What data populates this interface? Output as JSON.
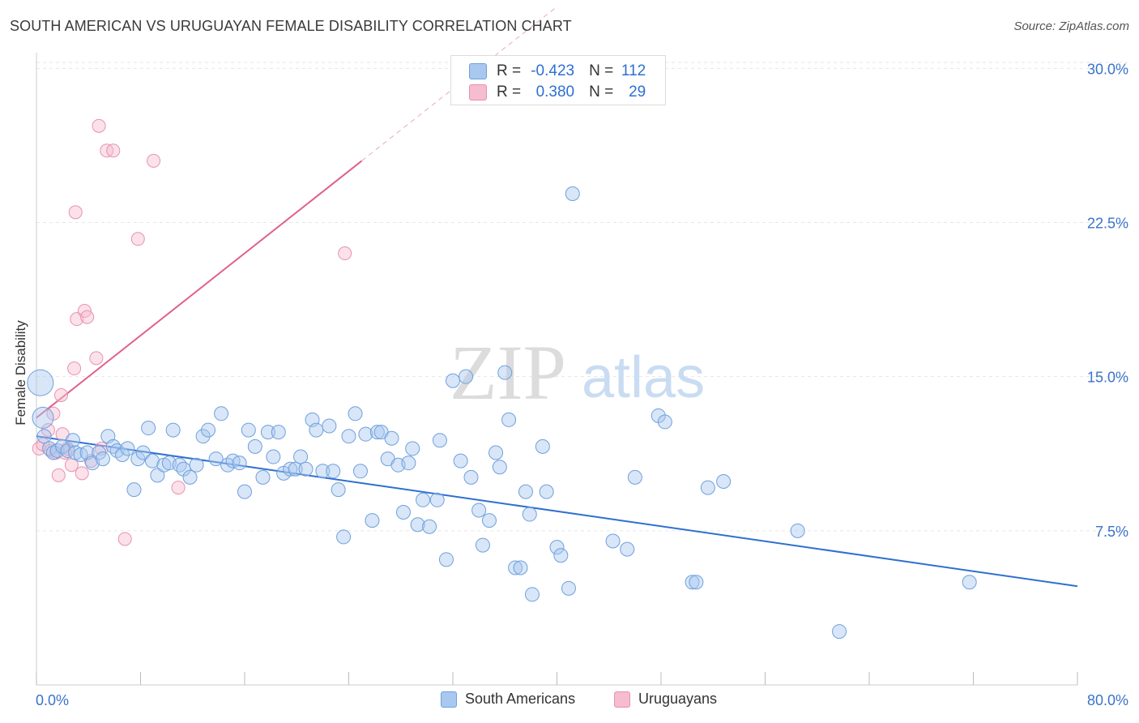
{
  "header": {
    "title": "SOUTH AMERICAN VS URUGUAYAN FEMALE DISABILITY CORRELATION CHART",
    "source": "Source: ZipAtlas.com"
  },
  "watermark": {
    "zip": "ZIP",
    "atlas": "atlas"
  },
  "inset_legend": {
    "rows": [
      {
        "r_label": "R =",
        "r_value": "-0.423",
        "n_label": "N =",
        "n_value": "112"
      },
      {
        "r_label": "R =",
        "r_value": "0.380",
        "n_label": "N =",
        "n_value": "29"
      }
    ]
  },
  "bottom_legend": {
    "south_americans": "South Americans",
    "uruguayans": "Uruguayans"
  },
  "colors": {
    "blue_fill": "#a8c8f0",
    "blue_stroke": "#6fa0dc",
    "blue_line": "#2e6fd1",
    "pink_fill": "#f6bcd0",
    "pink_stroke": "#e891b0",
    "pink_line": "#e0608a",
    "axis_text": "#3a73c8",
    "grid": "#e6e6e6"
  },
  "chart_data": {
    "type": "scatter",
    "title": "SOUTH AMERICAN VS URUGUAYAN FEMALE DISABILITY CORRELATION CHART",
    "xlabel": "",
    "ylabel": "Female Disability",
    "xlim": [
      0,
      80
    ],
    "ylim": [
      0,
      31.5
    ],
    "x_tick_labels": [
      "0.0%",
      "80.0%"
    ],
    "y_ticks": [
      7.5,
      15.0,
      22.5,
      30.0
    ],
    "y_tick_labels": [
      "7.5%",
      "15.0%",
      "22.5%",
      "30.0%"
    ],
    "grid": true,
    "series": [
      {
        "name": "South Americans",
        "R": -0.423,
        "N": 112,
        "trend": {
          "x": [
            0,
            80
          ],
          "y": [
            12.1,
            4.8
          ]
        },
        "points": [
          [
            0.3,
            14.7
          ],
          [
            0.5,
            13.0
          ],
          [
            0.6,
            12.1
          ],
          [
            1.0,
            11.5
          ],
          [
            1.3,
            11.3
          ],
          [
            1.6,
            11.4
          ],
          [
            2.0,
            11.6
          ],
          [
            2.4,
            11.4
          ],
          [
            2.8,
            11.9
          ],
          [
            3.0,
            11.3
          ],
          [
            3.4,
            11.2
          ],
          [
            3.9,
            11.3
          ],
          [
            4.3,
            10.8
          ],
          [
            4.8,
            11.3
          ],
          [
            5.1,
            11.0
          ],
          [
            5.5,
            12.1
          ],
          [
            5.9,
            11.6
          ],
          [
            6.2,
            11.4
          ],
          [
            6.6,
            11.2
          ],
          [
            7.0,
            11.5
          ],
          [
            7.5,
            9.5
          ],
          [
            7.8,
            11.0
          ],
          [
            8.2,
            11.3
          ],
          [
            8.6,
            12.5
          ],
          [
            8.9,
            10.9
          ],
          [
            9.3,
            10.2
          ],
          [
            9.8,
            10.7
          ],
          [
            10.2,
            10.8
          ],
          [
            10.5,
            12.4
          ],
          [
            11.0,
            10.7
          ],
          [
            11.3,
            10.5
          ],
          [
            11.8,
            10.1
          ],
          [
            12.3,
            10.7
          ],
          [
            12.8,
            12.1
          ],
          [
            13.2,
            12.4
          ],
          [
            13.8,
            11.0
          ],
          [
            14.2,
            13.2
          ],
          [
            14.7,
            10.7
          ],
          [
            15.1,
            10.9
          ],
          [
            15.6,
            10.8
          ],
          [
            16.0,
            9.4
          ],
          [
            16.3,
            12.4
          ],
          [
            16.8,
            11.6
          ],
          [
            17.4,
            10.1
          ],
          [
            17.8,
            12.3
          ],
          [
            18.2,
            11.1
          ],
          [
            18.6,
            12.3
          ],
          [
            19.0,
            10.3
          ],
          [
            19.5,
            10.5
          ],
          [
            19.9,
            10.5
          ],
          [
            20.3,
            11.1
          ],
          [
            20.7,
            10.5
          ],
          [
            21.2,
            12.9
          ],
          [
            21.5,
            12.4
          ],
          [
            22.0,
            10.4
          ],
          [
            22.5,
            12.6
          ],
          [
            22.8,
            10.4
          ],
          [
            23.2,
            9.5
          ],
          [
            23.6,
            7.2
          ],
          [
            24.0,
            12.1
          ],
          [
            24.5,
            13.2
          ],
          [
            24.9,
            10.4
          ],
          [
            25.3,
            12.2
          ],
          [
            25.8,
            8.0
          ],
          [
            26.2,
            12.3
          ],
          [
            26.5,
            12.3
          ],
          [
            27.0,
            11.0
          ],
          [
            27.3,
            12.0
          ],
          [
            27.8,
            10.7
          ],
          [
            28.2,
            8.4
          ],
          [
            28.6,
            10.8
          ],
          [
            28.9,
            11.5
          ],
          [
            29.3,
            7.8
          ],
          [
            29.7,
            9.0
          ],
          [
            30.2,
            7.7
          ],
          [
            30.8,
            9.0
          ],
          [
            31.0,
            11.9
          ],
          [
            31.5,
            6.1
          ],
          [
            32.0,
            14.8
          ],
          [
            32.6,
            10.9
          ],
          [
            33.0,
            15.0
          ],
          [
            33.4,
            10.1
          ],
          [
            34.0,
            8.5
          ],
          [
            34.3,
            6.8
          ],
          [
            34.8,
            8.0
          ],
          [
            35.3,
            11.3
          ],
          [
            35.6,
            10.6
          ],
          [
            36.0,
            15.2
          ],
          [
            36.3,
            12.9
          ],
          [
            36.8,
            5.7
          ],
          [
            37.2,
            5.7
          ],
          [
            37.6,
            9.4
          ],
          [
            37.9,
            8.3
          ],
          [
            38.1,
            4.4
          ],
          [
            38.9,
            11.6
          ],
          [
            39.2,
            9.4
          ],
          [
            40.0,
            6.7
          ],
          [
            40.3,
            6.3
          ],
          [
            40.9,
            4.7
          ],
          [
            41.2,
            23.9
          ],
          [
            44.3,
            7.0
          ],
          [
            45.4,
            6.6
          ],
          [
            46.0,
            10.1
          ],
          [
            47.8,
            13.1
          ],
          [
            48.3,
            12.8
          ],
          [
            50.4,
            5.0
          ],
          [
            50.7,
            5.0
          ],
          [
            51.6,
            9.6
          ],
          [
            52.8,
            9.9
          ],
          [
            58.5,
            7.5
          ],
          [
            61.7,
            2.6
          ],
          [
            71.7,
            5.0
          ]
        ]
      },
      {
        "name": "Uruguayans",
        "R": 0.38,
        "N": 29,
        "trend": {
          "x": [
            0,
            25
          ],
          "y": [
            13.0,
            25.5
          ]
        },
        "trend_dashed": {
          "x": [
            25,
            40
          ],
          "y": [
            25.5,
            33.0
          ]
        },
        "points": [
          [
            0.2,
            11.5
          ],
          [
            0.5,
            11.7
          ],
          [
            0.9,
            12.4
          ],
          [
            1.1,
            11.4
          ],
          [
            1.3,
            13.2
          ],
          [
            1.5,
            11.3
          ],
          [
            1.7,
            10.2
          ],
          [
            1.9,
            14.1
          ],
          [
            2.0,
            12.2
          ],
          [
            2.2,
            11.3
          ],
          [
            2.4,
            11.5
          ],
          [
            2.7,
            10.7
          ],
          [
            2.9,
            15.4
          ],
          [
            3.0,
            23.0
          ],
          [
            3.1,
            17.8
          ],
          [
            3.5,
            10.3
          ],
          [
            3.7,
            18.2
          ],
          [
            3.9,
            17.9
          ],
          [
            4.2,
            10.9
          ],
          [
            4.6,
            15.9
          ],
          [
            4.8,
            27.2
          ],
          [
            5.0,
            11.5
          ],
          [
            5.4,
            26.0
          ],
          [
            5.9,
            26.0
          ],
          [
            6.8,
            7.1
          ],
          [
            7.8,
            21.7
          ],
          [
            9.0,
            25.5
          ],
          [
            10.9,
            9.6
          ],
          [
            23.7,
            21.0
          ]
        ]
      }
    ]
  }
}
